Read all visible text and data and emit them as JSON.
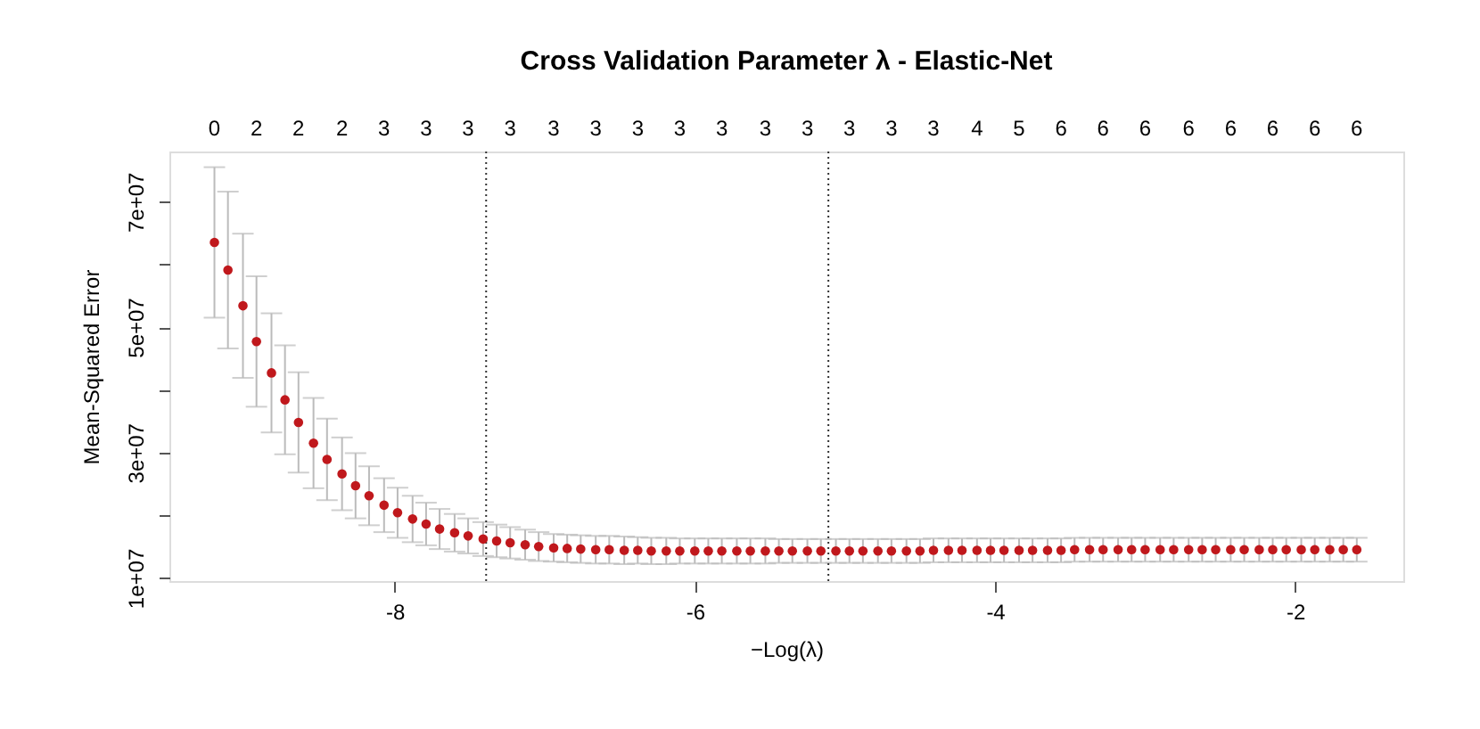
{
  "chart_data": {
    "type": "scatter",
    "title": "Cross Validation Parameter λ - Elastic-Net",
    "xlabel": "−Log(λ)",
    "ylabel": "Mean-Squared Error",
    "x": [
      -9.2,
      -9.11,
      -9.01,
      -8.92,
      -8.82,
      -8.73,
      -8.64,
      -8.54,
      -8.45,
      -8.35,
      -8.26,
      -8.17,
      -8.07,
      -7.98,
      -7.88,
      -7.79,
      -7.7,
      -7.6,
      -7.51,
      -7.41,
      -7.32,
      -7.23,
      -7.13,
      -7.04,
      -6.94,
      -6.85,
      -6.76,
      -6.66,
      -6.57,
      -6.47,
      -6.38,
      -6.29,
      -6.19,
      -6.1,
      -6,
      -5.91,
      -5.82,
      -5.72,
      -5.63,
      -5.53,
      -5.44,
      -5.35,
      -5.25,
      -5.16,
      -5.06,
      -4.97,
      -4.88,
      -4.78,
      -4.69,
      -4.59,
      -4.5,
      -4.41,
      -4.31,
      -4.22,
      -4.12,
      -4.03,
      -3.94,
      -3.84,
      -3.75,
      -3.65,
      -3.56,
      -3.47,
      -3.37,
      -3.28,
      -3.18,
      -3.09,
      -3,
      -2.9,
      -2.81,
      -2.71,
      -2.62,
      -2.53,
      -2.43,
      -2.34,
      -2.24,
      -2.15,
      -2.06,
      -1.96,
      -1.87,
      -1.77,
      -1.68,
      -1.59
    ],
    "values": [
      63500000,
      59100000,
      53400000,
      47700000,
      42700000,
      38400000,
      34800000,
      31500000,
      28900000,
      26600000,
      24700000,
      23100000,
      21600000,
      20400000,
      19400000,
      18600000,
      17800000,
      17200000,
      16700000,
      16200000,
      15900000,
      15600000,
      15300000,
      15000000,
      14800000,
      14700000,
      14600000,
      14500000,
      14500000,
      14400000,
      14400000,
      14300000,
      14300000,
      14300000,
      14300000,
      14300000,
      14300000,
      14300000,
      14300000,
      14300000,
      14300000,
      14300000,
      14300000,
      14300000,
      14300000,
      14300000,
      14300000,
      14300000,
      14300000,
      14300000,
      14300000,
      14400000,
      14400000,
      14400000,
      14400000,
      14400000,
      14400000,
      14400000,
      14400000,
      14400000,
      14400000,
      14500000,
      14500000,
      14500000,
      14500000,
      14500000,
      14500000,
      14500000,
      14500000,
      14500000,
      14500000,
      14500000,
      14500000,
      14500000,
      14500000,
      14500000,
      14500000,
      14500000,
      14500000,
      14500000,
      14500000,
      14500000
    ],
    "errors": [
      12000000,
      12500000,
      11500000,
      10400000,
      9500000,
      8700000,
      8000000,
      7200000,
      6500000,
      5800000,
      5200000,
      4700000,
      4300000,
      4000000,
      3700000,
      3400000,
      3200000,
      3000000,
      2800000,
      2700000,
      2600000,
      2500000,
      2400000,
      2300000,
      2200000,
      2200000,
      2200000,
      2200000,
      2200000,
      2200000,
      2100000,
      2100000,
      2100000,
      2000000,
      2000000,
      2000000,
      2000000,
      2000000,
      2000000,
      2000000,
      1900000,
      1900000,
      1900000,
      1900000,
      1900000,
      1900000,
      1900000,
      1900000,
      1900000,
      1900000,
      1900000,
      1900000,
      1900000,
      1900000,
      1900000,
      1900000,
      1900000,
      1900000,
      1900000,
      1900000,
      1900000,
      1900000,
      1900000,
      1900000,
      1900000,
      1900000,
      1900000,
      1900000,
      1900000,
      1900000,
      1900000,
      1900000,
      1900000,
      1900000,
      1900000,
      1900000,
      1900000,
      1900000,
      1900000,
      1900000,
      1900000,
      1900000
    ],
    "color": "#c0181c",
    "xlim": [
      -9.5,
      -1.28
    ],
    "xticks": [
      -8,
      -6,
      -4,
      -2
    ],
    "ylim": [
      9500000,
      78000000
    ],
    "yticks": [
      {
        "value": 10000000,
        "label": "1e+07"
      },
      {
        "value": 20000000,
        "label": null
      },
      {
        "value": 30000000,
        "label": "3e+07"
      },
      {
        "value": 40000000,
        "label": null
      },
      {
        "value": 50000000,
        "label": "5e+07"
      },
      {
        "value": 60000000,
        "label": null
      },
      {
        "value": 70000000,
        "label": "7e+07"
      }
    ],
    "annotations": [
      "0",
      "2",
      "2",
      "2",
      "3",
      "3",
      "3",
      "3",
      "3",
      "3",
      "3",
      "3",
      "3",
      "3",
      "3",
      "3",
      "3",
      "3",
      "4",
      "5",
      "6",
      "6",
      "6",
      "6",
      "6",
      "6",
      "6",
      "6"
    ],
    "ref_lines": [
      {
        "axis": "x",
        "value": -7.39,
        "line_style": "dotted",
        "color": "#333333"
      },
      {
        "axis": "x",
        "value": -5.11,
        "line_style": "dotted",
        "color": "#333333"
      }
    ],
    "marker": "circle",
    "grid": false
  }
}
